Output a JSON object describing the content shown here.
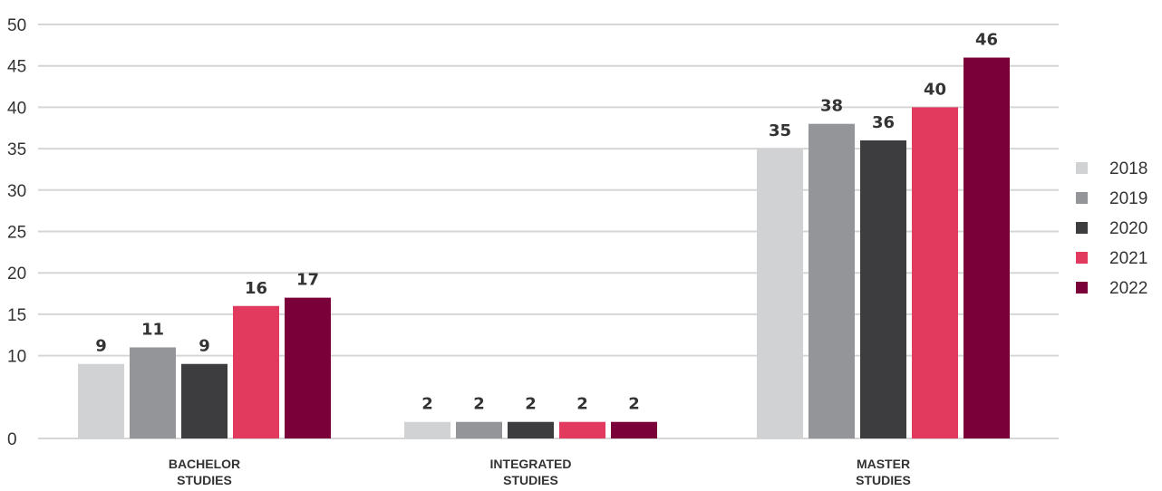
{
  "chart_data": {
    "type": "bar",
    "categories": [
      [
        "BACHELOR",
        "STUDIES"
      ],
      [
        "INTEGRATED",
        "STUDIES"
      ],
      [
        "MASTER",
        "STUDIES"
      ]
    ],
    "series": [
      {
        "name": "2018",
        "color": "#d1d2d4",
        "values": [
          9,
          2,
          35
        ]
      },
      {
        "name": "2019",
        "color": "#939598",
        "values": [
          11,
          2,
          38
        ]
      },
      {
        "name": "2020",
        "color": "#3d3d3f",
        "values": [
          9,
          2,
          36
        ]
      },
      {
        "name": "2021",
        "color": "#e23a5e",
        "values": [
          16,
          2,
          40
        ]
      },
      {
        "name": "2022",
        "color": "#7a0039",
        "values": [
          17,
          2,
          46
        ]
      }
    ],
    "ylim": [
      0,
      50
    ],
    "yticks": [
      0,
      10,
      15,
      20,
      25,
      30,
      35,
      40,
      45,
      50
    ],
    "grid": true,
    "legend": "right",
    "title": "",
    "xlabel": "",
    "ylabel": ""
  }
}
